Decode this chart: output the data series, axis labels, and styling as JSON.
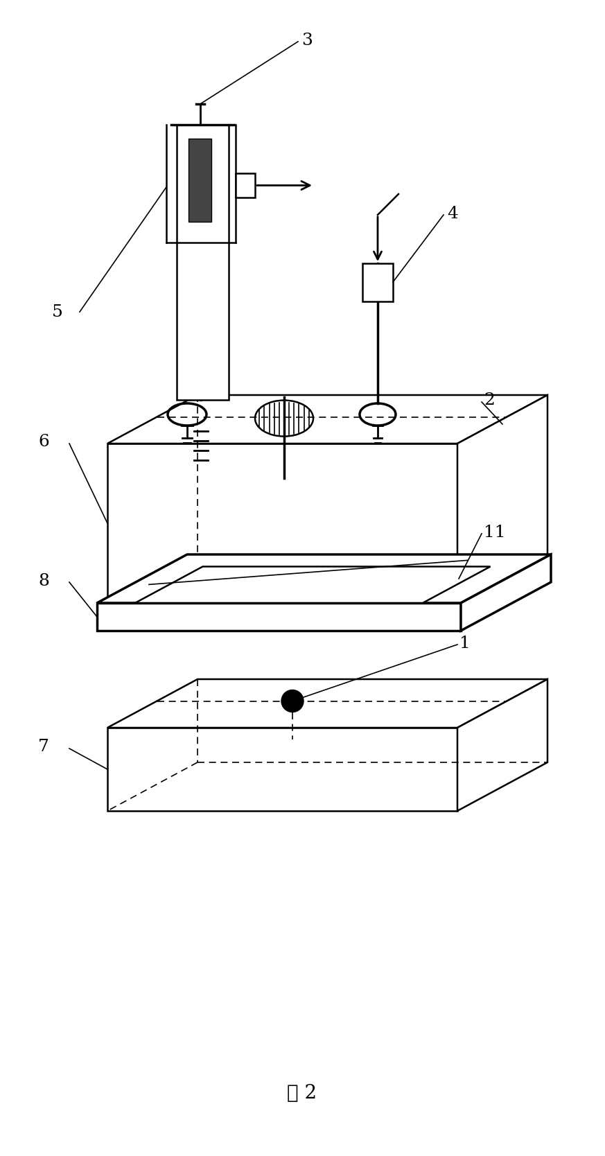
{
  "title": "图 2",
  "title_fontsize": 20,
  "fig_width": 8.73,
  "fig_height": 16.68,
  "bg_color": "#ffffff",
  "line_color": "#000000"
}
